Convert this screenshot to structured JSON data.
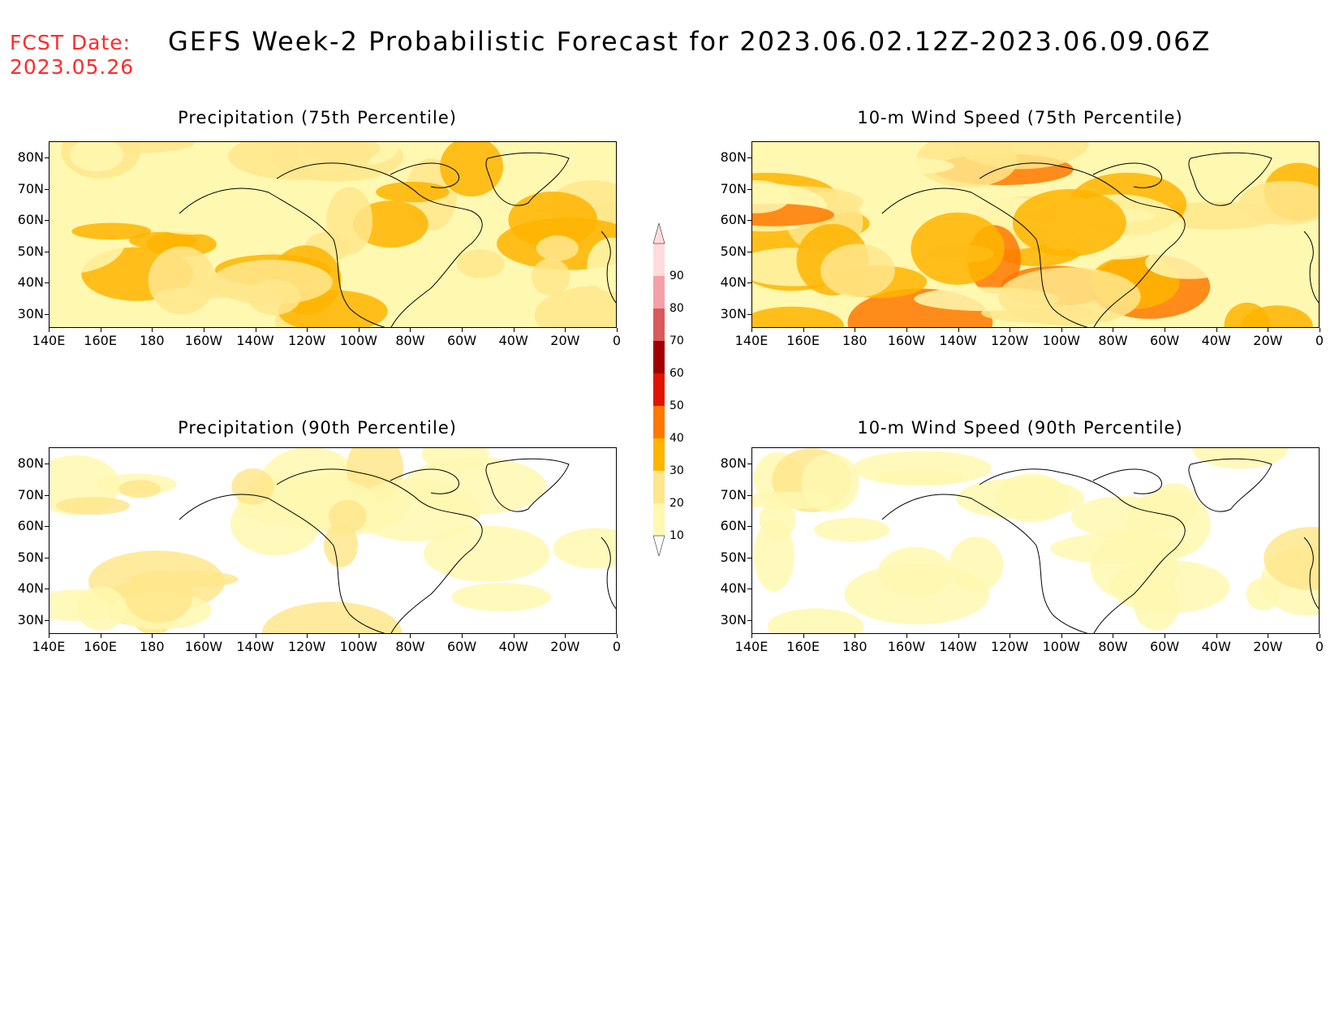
{
  "fcst_date": {
    "label": "FCST Date:",
    "value": "2023.05.26"
  },
  "title": "GEFS Week-2 Probabilistic Forecast for 2023.06.02.12Z-2023.06.09.06Z",
  "lat_labels": [
    "80N",
    "70N",
    "60N",
    "50N",
    "40N",
    "30N"
  ],
  "lon_labels": [
    "140E",
    "160E",
    "180",
    "160W",
    "140W",
    "120W",
    "100W",
    "80W",
    "60W",
    "40W",
    "20W",
    "0"
  ],
  "colorbar": {
    "levels": [
      "10",
      "20",
      "30",
      "40",
      "50",
      "60",
      "70",
      "80",
      "90"
    ],
    "colors": [
      "#fff8b0",
      "#ffe68c",
      "#ffb400",
      "#ff7800",
      "#e01400",
      "#a00000",
      "#d85a5a",
      "#f4a0a8",
      "#ffdcdc"
    ]
  },
  "panels": [
    {
      "id": "precip75",
      "title": "Precipitation (75th Percentile)",
      "level": 0.7
    },
    {
      "id": "wind75",
      "title": "10-m Wind Speed (75th Percentile)",
      "level": 0.8
    },
    {
      "id": "precip90",
      "title": "Precipitation (90th Percentile)",
      "level": 0.25
    },
    {
      "id": "wind90",
      "title": "10-m Wind Speed (90th Percentile)",
      "level": 0.2
    }
  ]
}
